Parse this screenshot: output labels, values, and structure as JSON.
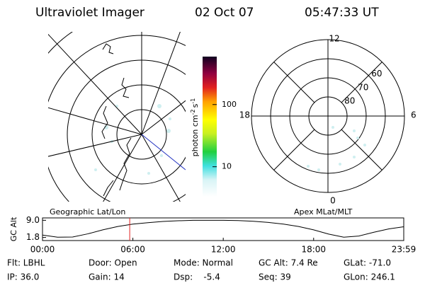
{
  "header": {
    "title": "Ultraviolet Imager",
    "date": "02 Oct 07",
    "time": "05:47:33 UT"
  },
  "geo_panel": {
    "title": "Geographic Lat/Lon"
  },
  "colorbar": {
    "label": "photon cm",
    "exp1": "-2",
    "unit2": "s",
    "exp2": "-1",
    "log": true,
    "lim": [
      3.3,
      590
    ],
    "ticks": [
      10,
      100
    ]
  },
  "polar_panel": {
    "title": "Apex MLat/MLT",
    "mlt_labels": {
      "top": "12",
      "right": "6",
      "bottom": "0",
      "left": "18"
    },
    "lat_lim": [
      50,
      90
    ],
    "lat_ticks": [
      60,
      70,
      80
    ]
  },
  "chart_data": {
    "type": "line",
    "y_label": "GC Alt",
    "x": [
      0,
      1,
      2,
      3,
      4,
      5,
      6,
      7,
      8,
      9,
      10,
      11,
      12,
      13,
      14,
      15,
      16,
      17,
      18,
      19,
      20,
      21,
      22,
      23,
      23.983
    ],
    "values": [
      2.8,
      1.9,
      2.0,
      3.3,
      5.0,
      6.4,
      7.4,
      8.0,
      8.5,
      8.8,
      9.0,
      9.0,
      9.0,
      8.9,
      8.6,
      8.1,
      7.4,
      6.4,
      5.0,
      3.2,
      1.9,
      2.4,
      4.0,
      5.4,
      6.3
    ],
    "color": "#000000",
    "marker_x": 5.79,
    "marker_color": "#e02020",
    "xlim": [
      0,
      23.983
    ],
    "xticks": [
      {
        "value": 0,
        "label": "00:00"
      },
      {
        "value": 6,
        "label": "06:00"
      },
      {
        "value": 12,
        "label": "12:00"
      },
      {
        "value": 18,
        "label": "18:00"
      },
      {
        "value": 23.983,
        "label": "23:59"
      }
    ],
    "ylim": [
      0.5,
      10.0
    ],
    "yticks": [
      {
        "value": 1.8,
        "label": "1.8"
      },
      {
        "value": 9.0,
        "label": "9.0"
      }
    ]
  },
  "footer": {
    "rows": [
      [
        "Flt: LBHL",
        "Door: Open",
        "Mode: Normal",
        "GC Alt: 7.4 Re",
        "GLat: -71.0"
      ],
      [
        "IP: 36.0",
        "Gain: 14",
        "Dsp:    -5.4",
        "Seq: 39",
        "GLon: 246.1"
      ]
    ]
  }
}
